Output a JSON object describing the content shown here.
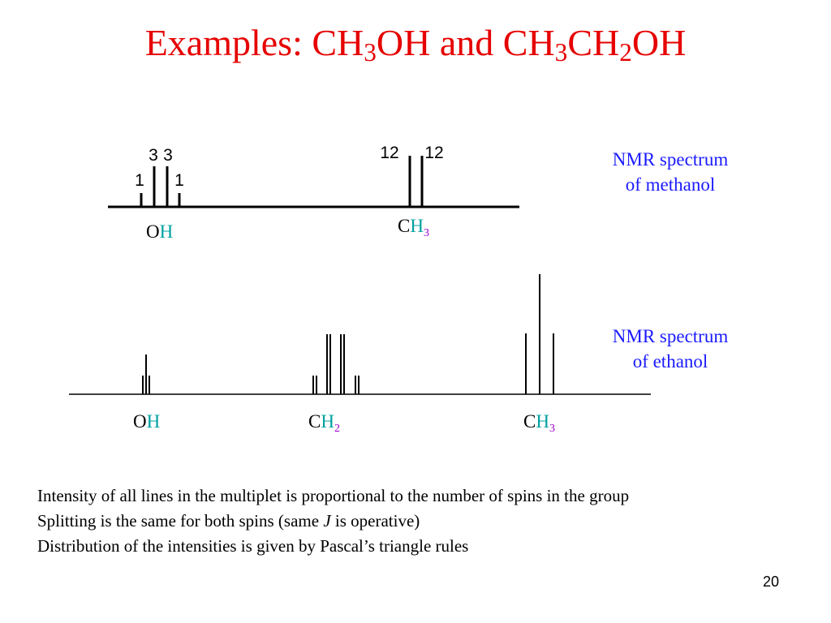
{
  "title": {
    "prefix": "Examples: CH",
    "sub1": "3",
    "mid": "OH and CH",
    "sub2": "3",
    "mid2": "CH",
    "sub3": "2",
    "suffix": "OH"
  },
  "methanol": {
    "legend_line1": "NMR spectrum",
    "legend_line2": "of methanol",
    "oh_peaks": [
      {
        "intensity": "1"
      },
      {
        "intensity": "3"
      },
      {
        "intensity": "3"
      },
      {
        "intensity": "1"
      }
    ],
    "ch3_peaks": [
      {
        "intensity": "12"
      },
      {
        "intensity": "12"
      }
    ],
    "oh_label": {
      "atom1": "O",
      "atom2": "H"
    },
    "ch3_label": {
      "atom1": "C",
      "atom2": "H",
      "sub": "3"
    }
  },
  "ethanol": {
    "legend_line1": "NMR spectrum",
    "legend_line2": "of ethanol",
    "oh_label": {
      "atom1": "O",
      "atom2": "H"
    },
    "ch2_label": {
      "atom1": "C",
      "atom2": "H",
      "sub": "2"
    },
    "ch3_label": {
      "atom1": "C",
      "atom2": "H",
      "sub": "3"
    }
  },
  "notes": [
    "Intensity of all lines in the multiplet is proportional to the number of spins in the group",
    "Distribution of the intensities is given by Pascal’s triangle rules"
  ],
  "note_splitting": {
    "before": "Splitting is the same for both spins (same ",
    "italic": "J",
    "after": " is operative)"
  },
  "page_number": "20",
  "colors": {
    "title": "#e60000",
    "legend": "#1a1aff",
    "oh_h": "#00a0a0",
    "ch_h": "#00a0a0",
    "subscript": "#9900cc",
    "lines": "#000000"
  }
}
